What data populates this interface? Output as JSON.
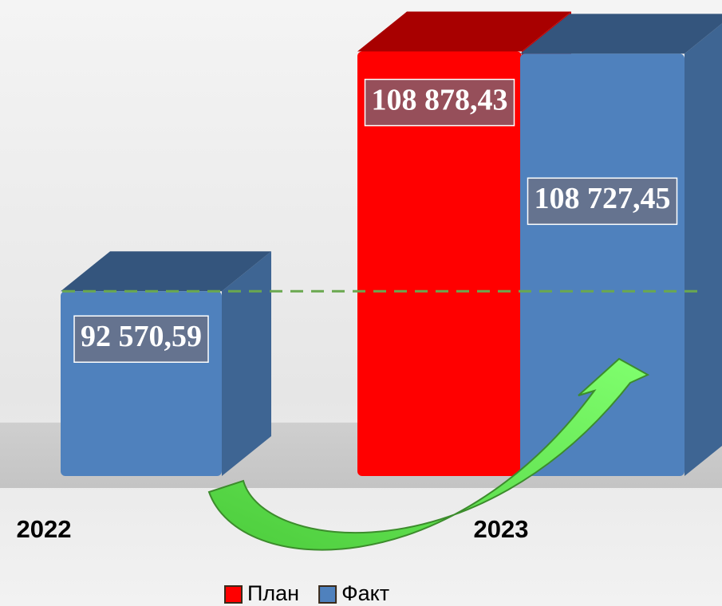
{
  "chart_data": {
    "type": "bar3d",
    "categories": [
      "2022",
      "2023"
    ],
    "series": [
      {
        "name": "План",
        "color": "#ff0000",
        "values": [
          null,
          108878.43
        ],
        "value_labels": [
          null,
          "108 878,43"
        ]
      },
      {
        "name": "Факт",
        "color": "#4f81bd",
        "values": [
          92570.59,
          108727.45
        ],
        "value_labels": [
          "92 570,59",
          "108 727,45"
        ]
      }
    ],
    "ylim": [
      80000,
      112000
    ],
    "legend": "bottom"
  }
}
